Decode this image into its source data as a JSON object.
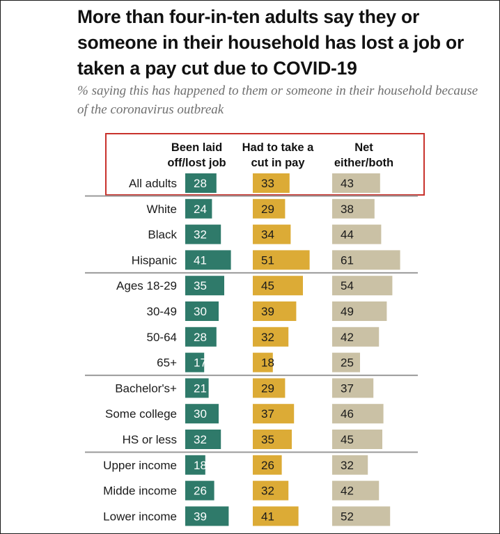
{
  "title": "More than four-in-ten adults say they or someone in their household has lost a job or taken a pay cut due to COVID-19",
  "subtitle": "% saying this has happened to them or someone in their household because of the coronavirus outbreak",
  "chart_data": {
    "type": "bar",
    "orientation": "horizontal",
    "xlim": [
      0,
      100
    ],
    "categories": [
      "All adults",
      "White",
      "Black",
      "Hispanic",
      "Ages 18-29",
      "30-49",
      "50-64",
      "65+",
      "Bachelor's+",
      "Some college",
      "HS or less",
      "Upper income",
      "Midde income",
      "Lower income"
    ],
    "groups_end_after": [
      "All adults",
      "Hispanic",
      "65+",
      "HS or less"
    ],
    "highlighted_category": "All adults",
    "series": [
      {
        "name": "Been laid off/lost job",
        "label_lines": [
          "Been laid",
          "off/lost job"
        ],
        "color": "#2f7a6a",
        "values": [
          28,
          24,
          32,
          41,
          35,
          30,
          28,
          17,
          21,
          30,
          32,
          18,
          26,
          39
        ]
      },
      {
        "name": "Had to take a cut in pay",
        "label_lines": [
          "Had to take a",
          "cut in pay"
        ],
        "color": "#dcab36",
        "values": [
          33,
          29,
          34,
          51,
          45,
          39,
          32,
          18,
          29,
          37,
          35,
          26,
          32,
          41
        ]
      },
      {
        "name": "Net either/both",
        "label_lines": [
          "Net",
          "either/both"
        ],
        "color": "#cac1a5",
        "values": [
          43,
          38,
          44,
          61,
          54,
          49,
          42,
          25,
          37,
          46,
          45,
          32,
          42,
          52
        ]
      }
    ]
  }
}
